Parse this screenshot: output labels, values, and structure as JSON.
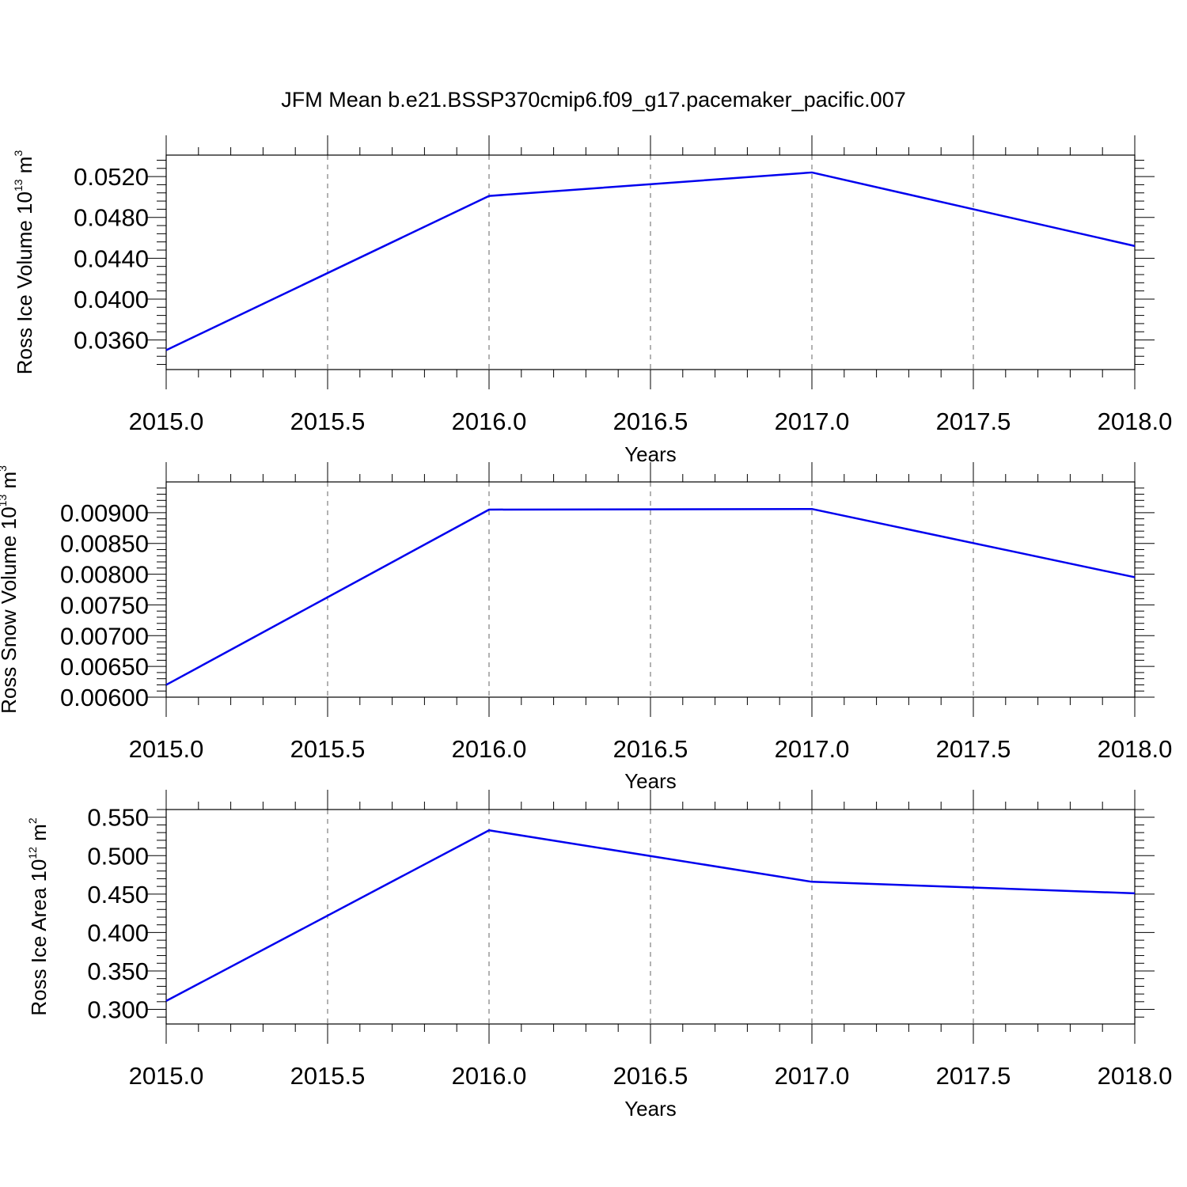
{
  "title": "JFM Mean b.e21.BSSP370cmip6.f09_g17.pacemaker_pacific.007",
  "line_color": "#0000ee",
  "chart_data": [
    {
      "type": "line",
      "ylabel": "Ross Ice Volume 10",
      "ylabel_exp": "13",
      "ylabel_unit": " m",
      "ylabel_unit_exp": "3",
      "xlabel": "Years",
      "xlim": [
        2015.0,
        2018.0
      ],
      "ylim": [
        0.0331,
        0.0541
      ],
      "xticks": [
        2015.0,
        2015.5,
        2016.0,
        2016.5,
        2017.0,
        2017.5,
        2018.0
      ],
      "xtick_labels": [
        "2015.0",
        "2015.5",
        "2016.0",
        "2016.5",
        "2017.0",
        "2017.5",
        "2018.0"
      ],
      "yticks": [
        0.036,
        0.04,
        0.044,
        0.048,
        0.052
      ],
      "ytick_labels": [
        "0.0360",
        "0.0400",
        "0.0440",
        "0.0480",
        "0.0520"
      ],
      "grid": "vertical dashed",
      "series": [
        {
          "x": [
            2015,
            2016,
            2017,
            2018
          ],
          "y": [
            0.035,
            0.0501,
            0.0524,
            0.0452
          ]
        }
      ]
    },
    {
      "type": "line",
      "ylabel": "Ross Snow Volume 10",
      "ylabel_exp": "13",
      "ylabel_unit": " m",
      "ylabel_unit_exp": "3",
      "xlabel": "Years",
      "xlim": [
        2015.0,
        2018.0
      ],
      "ylim": [
        0.006,
        0.0095
      ],
      "xticks": [
        2015.0,
        2015.5,
        2016.0,
        2016.5,
        2017.0,
        2017.5,
        2018.0
      ],
      "xtick_labels": [
        "2015.0",
        "2015.5",
        "2016.0",
        "2016.5",
        "2017.0",
        "2017.5",
        "2018.0"
      ],
      "yticks": [
        0.006,
        0.0065,
        0.007,
        0.0075,
        0.008,
        0.0085,
        0.009
      ],
      "ytick_labels": [
        "0.00600",
        "0.00650",
        "0.00700",
        "0.00750",
        "0.00800",
        "0.00850",
        "0.00900"
      ],
      "grid": "vertical dashed",
      "series": [
        {
          "x": [
            2015,
            2016,
            2017,
            2018
          ],
          "y": [
            0.0062,
            0.00905,
            0.00906,
            0.00795
          ]
        }
      ]
    },
    {
      "type": "line",
      "ylabel": "Ross Ice Area 10",
      "ylabel_exp": "12",
      "ylabel_unit": " m",
      "ylabel_unit_exp": "2",
      "xlabel": "Years",
      "xlim": [
        2015.0,
        2018.0
      ],
      "ylim": [
        0.281,
        0.56
      ],
      "xticks": [
        2015.0,
        2015.5,
        2016.0,
        2016.5,
        2017.0,
        2017.5,
        2018.0
      ],
      "xtick_labels": [
        "2015.0",
        "2015.5",
        "2016.0",
        "2016.5",
        "2017.0",
        "2017.5",
        "2018.0"
      ],
      "yticks": [
        0.3,
        0.35,
        0.4,
        0.45,
        0.5,
        0.55
      ],
      "ytick_labels": [
        "0.300",
        "0.350",
        "0.400",
        "0.450",
        "0.500",
        "0.550"
      ],
      "grid": "vertical dashed",
      "series": [
        {
          "x": [
            2015,
            2016,
            2017,
            2018
          ],
          "y": [
            0.311,
            0.533,
            0.466,
            0.451
          ]
        }
      ]
    }
  ]
}
